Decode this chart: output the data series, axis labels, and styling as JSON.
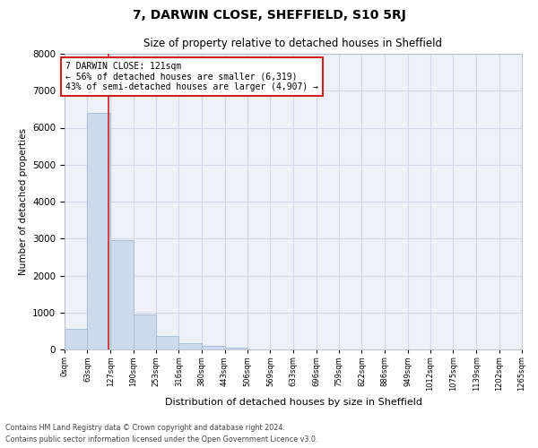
{
  "title": "7, DARWIN CLOSE, SHEFFIELD, S10 5RJ",
  "subtitle": "Size of property relative to detached houses in Sheffield",
  "xlabel": "Distribution of detached houses by size in Sheffield",
  "ylabel": "Number of detached properties",
  "bin_labels": [
    "0sqm",
    "63sqm",
    "127sqm",
    "190sqm",
    "253sqm",
    "316sqm",
    "380sqm",
    "443sqm",
    "506sqm",
    "569sqm",
    "633sqm",
    "696sqm",
    "759sqm",
    "822sqm",
    "886sqm",
    "949sqm",
    "1012sqm",
    "1075sqm",
    "1139sqm",
    "1202sqm",
    "1265sqm"
  ],
  "bin_edges": [
    0,
    63,
    127,
    190,
    253,
    316,
    380,
    443,
    506,
    569,
    633,
    696,
    759,
    822,
    886,
    949,
    1012,
    1075,
    1139,
    1202,
    1265
  ],
  "bar_heights": [
    550,
    6400,
    2950,
    950,
    360,
    175,
    100,
    60,
    0,
    0,
    0,
    0,
    0,
    0,
    0,
    0,
    0,
    0,
    0,
    0
  ],
  "bar_color": "#ccdaeb",
  "bar_edge_color": "#aabdd4",
  "property_sqm": 121,
  "vline_color": "#cc2222",
  "annotation_text": "7 DARWIN CLOSE: 121sqm\n← 56% of detached houses are smaller (6,319)\n43% of semi-detached houses are larger (4,907) →",
  "annotation_box_color": "white",
  "annotation_box_edge_color": "#cc2222",
  "ylim": [
    0,
    8000
  ],
  "yticks": [
    0,
    1000,
    2000,
    3000,
    4000,
    5000,
    6000,
    7000,
    8000
  ],
  "grid_color": "#d0d8ea",
  "background_color": "#edf2f9",
  "footer_line1": "Contains HM Land Registry data © Crown copyright and database right 2024.",
  "footer_line2": "Contains public sector information licensed under the Open Government Licence v3.0."
}
